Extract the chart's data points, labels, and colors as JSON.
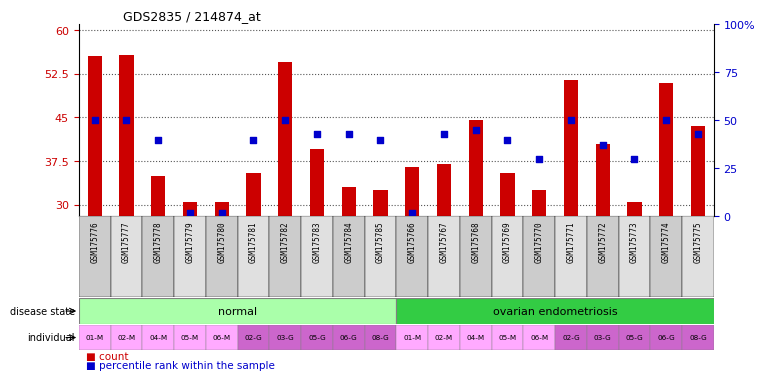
{
  "title": "GDS2835 / 214874_at",
  "gsm_labels": [
    "GSM175776",
    "GSM175777",
    "GSM175778",
    "GSM175779",
    "GSM175780",
    "GSM175781",
    "GSM175782",
    "GSM175783",
    "GSM175784",
    "GSM175785",
    "GSM175766",
    "GSM175767",
    "GSM175768",
    "GSM175769",
    "GSM175770",
    "GSM175771",
    "GSM175772",
    "GSM175773",
    "GSM175774",
    "GSM175775"
  ],
  "counts": [
    55.5,
    55.8,
    35.0,
    30.5,
    30.5,
    35.5,
    54.5,
    39.5,
    33.0,
    32.5,
    36.5,
    37.0,
    44.5,
    35.5,
    32.5,
    51.5,
    40.5,
    30.5,
    51.0,
    43.5
  ],
  "percentile_ranks": [
    50,
    50,
    40,
    2,
    2,
    40,
    50,
    43,
    43,
    40,
    2,
    43,
    45,
    40,
    30,
    50,
    37,
    30,
    50,
    43
  ],
  "ylim_left": [
    28,
    61
  ],
  "ylim_right": [
    0,
    100
  ],
  "yticks_left": [
    30,
    37.5,
    45,
    52.5,
    60
  ],
  "ytick_labels_left": [
    "30",
    "37.5",
    "45",
    "52.5",
    "60"
  ],
  "yticks_right": [
    0,
    25,
    50,
    75,
    100
  ],
  "ytick_labels_right": [
    "0",
    "25",
    "50",
    "75",
    "100%"
  ],
  "bar_color": "#cc0000",
  "scatter_color": "#0000cc",
  "disease_normal_color": "#aaffaa",
  "disease_ovarian_color": "#33cc44",
  "individual_color_light": "#ffaaff",
  "individual_color_dark": "#cc66cc",
  "tick_color_left": "#cc0000",
  "tick_color_right": "#0000cc",
  "dotted_color": "#555555",
  "individual_labels": [
    "01-M",
    "02-M",
    "04-M",
    "05-M",
    "06-M",
    "02-G",
    "03-G",
    "05-G",
    "06-G",
    "08-G",
    "01-M",
    "02-M",
    "04-M",
    "05-M",
    "06-M",
    "02-G",
    "03-G",
    "05-G",
    "06-G",
    "08-G"
  ],
  "gsm_bg_even": "#cccccc",
  "gsm_bg_odd": "#e0e0e0"
}
